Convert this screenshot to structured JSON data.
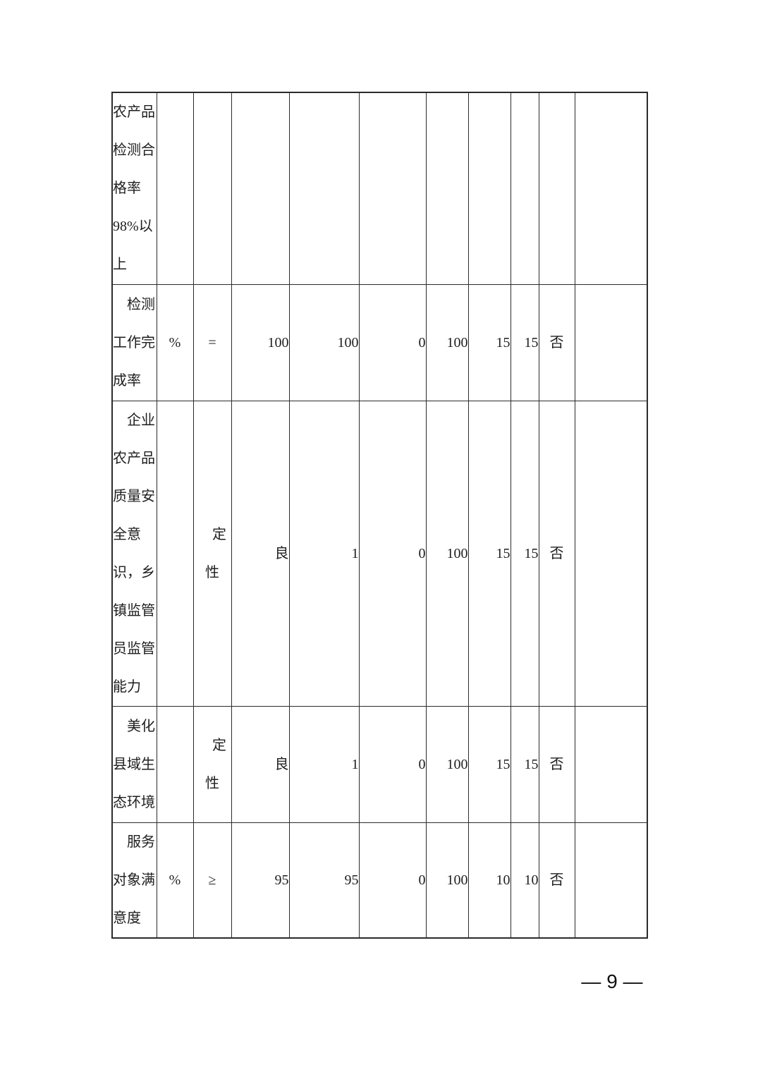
{
  "page": {
    "number_label": "— 9 —"
  },
  "table": {
    "rows": [
      {
        "cells": [
          "农产品\n检测合\n格率\n98%以\n上",
          "",
          "",
          "",
          "",
          "",
          "",
          "",
          "",
          "",
          ""
        ]
      },
      {
        "cells": [
          "　检测\n工作完\n成率",
          "%",
          "=",
          "100",
          "100",
          "0",
          "100",
          "15",
          "15",
          "否",
          ""
        ]
      },
      {
        "cells": [
          "　企业\n农产品\n质量安\n全意\n识，乡\n镇监管\n员监管\n能力",
          "",
          "　定\n性",
          "良",
          "1",
          "0",
          "100",
          "15",
          "15",
          "否",
          ""
        ]
      },
      {
        "cells": [
          "　美化\n县域生\n态环境",
          "",
          "　定\n性",
          "良",
          "1",
          "0",
          "100",
          "15",
          "15",
          "否",
          ""
        ]
      },
      {
        "cells": [
          "　服务\n对象满\n意度",
          "%",
          "≥",
          "95",
          "95",
          "0",
          "100",
          "10",
          "10",
          "否",
          ""
        ]
      }
    ]
  }
}
